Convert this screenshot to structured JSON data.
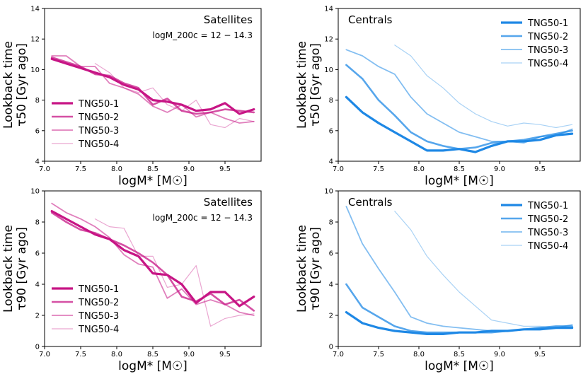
{
  "colors": {
    "satellites": "#c71585",
    "centrals": "#1e88e5"
  },
  "chart_data": [
    {
      "type": "line",
      "panel": "top-left",
      "title": "Satellites",
      "annotation": "logM_200c = 12 − 14.3",
      "xlabel": "logM* [M☉]",
      "ylabel_line1": "Lookback time",
      "ylabel_line2": "τ50 [Gyr ago]",
      "xlim": [
        7.0,
        10.0
      ],
      "ylim": [
        4,
        14
      ],
      "xticks": [
        "7.0",
        "7.5",
        "8.0",
        "8.5",
        "9.0",
        "9.5"
      ],
      "yticks": [
        "4",
        "6",
        "8",
        "10",
        "12",
        "14"
      ],
      "legend_position": "bottom-left",
      "series": [
        {
          "name": "TNG50-1",
          "x": [
            7.1,
            7.3,
            7.5,
            7.7,
            7.9,
            8.1,
            8.3,
            8.5,
            8.7,
            8.9,
            9.1,
            9.3,
            9.5,
            9.7,
            9.9
          ],
          "values": [
            10.7,
            10.4,
            10.1,
            9.8,
            9.5,
            9.0,
            8.7,
            8.0,
            7.9,
            7.7,
            7.3,
            7.4,
            7.8,
            7.1,
            7.4
          ]
        },
        {
          "name": "TNG50-2",
          "x": [
            7.1,
            7.3,
            7.5,
            7.7,
            7.9,
            8.1,
            8.3,
            8.5,
            8.7,
            8.9,
            9.1,
            9.3,
            9.5,
            9.7,
            9.9
          ],
          "values": [
            10.8,
            10.5,
            10.2,
            9.7,
            9.6,
            9.1,
            8.8,
            7.7,
            8.1,
            7.3,
            7.1,
            7.2,
            7.4,
            7.3,
            7.2
          ]
        },
        {
          "name": "TNG50-3",
          "x": [
            7.1,
            7.3,
            7.5,
            7.7,
            7.9,
            8.1,
            8.3,
            8.5,
            8.7,
            8.9,
            9.1,
            9.3,
            9.5,
            9.7,
            9.9
          ],
          "values": [
            10.9,
            10.9,
            10.2,
            10.2,
            9.1,
            8.8,
            8.4,
            7.6,
            7.2,
            7.7,
            6.9,
            7.2,
            6.8,
            6.5,
            6.6
          ]
        },
        {
          "name": "TNG50-4",
          "x": [
            7.7,
            7.9,
            8.1,
            8.3,
            8.5,
            8.7,
            8.9,
            9.1,
            9.3,
            9.5,
            9.7,
            9.9
          ],
          "values": [
            10.4,
            9.8,
            8.8,
            8.5,
            8.8,
            7.7,
            7.3,
            8.0,
            6.4,
            6.2,
            6.8,
            6.6
          ]
        }
      ]
    },
    {
      "type": "line",
      "panel": "top-right",
      "title": "Centrals",
      "xlabel": "logM* [M☉]",
      "ylabel_line1": "Lookback time",
      "ylabel_line2": "τ50 [Gyr ago]",
      "xlim": [
        7.0,
        10.0
      ],
      "ylim": [
        4,
        14
      ],
      "xticks": [
        "7.0",
        "7.5",
        "8.0",
        "8.5",
        "9.0",
        "9.5"
      ],
      "yticks": [
        "4",
        "6",
        "8",
        "10",
        "12",
        "14"
      ],
      "legend_position": "top-right",
      "series": [
        {
          "name": "TNG50-1",
          "x": [
            7.1,
            7.3,
            7.5,
            7.7,
            7.9,
            8.1,
            8.3,
            8.5,
            8.7,
            8.9,
            9.1,
            9.3,
            9.5,
            9.7,
            9.9
          ],
          "values": [
            8.2,
            7.2,
            6.5,
            5.9,
            5.3,
            4.7,
            4.7,
            4.8,
            4.6,
            5.0,
            5.3,
            5.3,
            5.4,
            5.7,
            5.8
          ]
        },
        {
          "name": "TNG50-2",
          "x": [
            7.1,
            7.3,
            7.5,
            7.7,
            7.9,
            8.1,
            8.3,
            8.5,
            8.7,
            8.9,
            9.1,
            9.3,
            9.5,
            9.7,
            9.9
          ],
          "values": [
            10.3,
            9.4,
            8.0,
            7.0,
            5.9,
            5.3,
            5.0,
            4.8,
            4.9,
            5.2,
            5.3,
            5.4,
            5.6,
            5.8,
            6.0
          ]
        },
        {
          "name": "TNG50-3",
          "x": [
            7.1,
            7.3,
            7.5,
            7.7,
            7.9,
            8.1,
            8.3,
            8.5,
            8.7,
            8.9,
            9.1,
            9.3,
            9.5,
            9.7,
            9.9
          ],
          "values": [
            11.3,
            10.9,
            10.2,
            9.7,
            8.2,
            7.1,
            6.5,
            5.9,
            5.6,
            5.3,
            5.3,
            5.2,
            5.6,
            5.7,
            6.1
          ]
        },
        {
          "name": "TNG50-4",
          "x": [
            7.7,
            7.9,
            8.1,
            8.3,
            8.5,
            8.7,
            8.9,
            9.1,
            9.3,
            9.5,
            9.7,
            9.9
          ],
          "values": [
            11.6,
            10.9,
            9.6,
            8.8,
            7.8,
            7.1,
            6.6,
            6.3,
            6.5,
            6.4,
            6.2,
            6.4
          ]
        }
      ]
    },
    {
      "type": "line",
      "panel": "bottom-left",
      "title": "Satellites",
      "annotation": "logM_200c = 12 − 14.3",
      "xlabel": "logM* [M☉]",
      "ylabel_line1": "Lookback time",
      "ylabel_line2": "τ90 [Gyr ago]",
      "xlim": [
        7.0,
        10.0
      ],
      "ylim": [
        0,
        10
      ],
      "xticks": [
        "7.0",
        "7.5",
        "8.0",
        "8.5",
        "9.0",
        "9.5"
      ],
      "yticks": [
        "0",
        "2",
        "4",
        "6",
        "8",
        "10"
      ],
      "legend_position": "bottom-left",
      "series": [
        {
          "name": "TNG50-1",
          "x": [
            7.1,
            7.3,
            7.5,
            7.7,
            7.9,
            8.1,
            8.3,
            8.5,
            8.7,
            8.9,
            9.1,
            9.3,
            9.5,
            9.7,
            9.9
          ],
          "values": [
            8.7,
            8.2,
            7.7,
            7.2,
            6.9,
            6.2,
            5.8,
            4.7,
            4.6,
            4.0,
            2.8,
            3.5,
            3.5,
            2.6,
            3.2
          ]
        },
        {
          "name": "TNG50-2",
          "x": [
            7.1,
            7.3,
            7.5,
            7.7,
            7.9,
            8.1,
            8.3,
            8.5,
            8.7,
            8.9,
            9.1,
            9.3,
            9.5,
            9.7,
            9.9
          ],
          "values": [
            8.6,
            8.0,
            7.5,
            7.3,
            6.9,
            6.5,
            6.0,
            5.4,
            4.6,
            3.2,
            2.9,
            3.4,
            2.7,
            3.0,
            2.3
          ]
        },
        {
          "name": "TNG50-3",
          "x": [
            7.1,
            7.3,
            7.5,
            7.7,
            7.9,
            8.1,
            8.3,
            8.5,
            8.7,
            8.9,
            9.1,
            9.3,
            9.5,
            9.7,
            9.9
          ],
          "values": [
            9.2,
            8.6,
            8.2,
            7.7,
            7.0,
            5.9,
            5.3,
            5.1,
            3.1,
            3.7,
            2.7,
            3.0,
            2.7,
            2.2,
            2.0
          ]
        },
        {
          "name": "TNG50-4",
          "x": [
            7.7,
            7.9,
            8.1,
            8.3,
            8.5,
            8.7,
            8.9,
            9.1,
            9.3,
            9.5,
            9.7,
            9.9
          ],
          "values": [
            8.2,
            7.7,
            7.6,
            5.8,
            5.8,
            3.8,
            4.0,
            5.2,
            1.3,
            1.8,
            2.0,
            2.1
          ]
        }
      ]
    },
    {
      "type": "line",
      "panel": "bottom-right",
      "title": "Centrals",
      "xlabel": "logM* [M☉]",
      "ylabel_line1": "Lookback time",
      "ylabel_line2": "τ90 [Gyr ago]",
      "xlim": [
        7.0,
        10.0
      ],
      "ylim": [
        0,
        10
      ],
      "xticks": [
        "7.0",
        "7.5",
        "8.0",
        "8.5",
        "9.0",
        "9.5"
      ],
      "yticks": [
        "0",
        "2",
        "4",
        "6",
        "8",
        "10"
      ],
      "legend_position": "top-right",
      "series": [
        {
          "name": "TNG50-1",
          "x": [
            7.1,
            7.3,
            7.5,
            7.7,
            7.9,
            8.1,
            8.3,
            8.5,
            8.7,
            8.9,
            9.1,
            9.3,
            9.5,
            9.7,
            9.9
          ],
          "values": [
            2.2,
            1.5,
            1.2,
            1.0,
            0.9,
            0.8,
            0.8,
            0.9,
            0.9,
            1.0,
            1.0,
            1.1,
            1.1,
            1.2,
            1.2
          ]
        },
        {
          "name": "TNG50-2",
          "x": [
            7.1,
            7.3,
            7.5,
            7.7,
            7.9,
            8.1,
            8.3,
            8.5,
            8.7,
            8.9,
            9.1,
            9.3,
            9.5,
            9.7,
            9.9
          ],
          "values": [
            4.0,
            2.5,
            1.9,
            1.3,
            1.0,
            0.9,
            0.9,
            0.9,
            0.9,
            0.9,
            1.0,
            1.1,
            1.2,
            1.3,
            1.3
          ]
        },
        {
          "name": "TNG50-3",
          "x": [
            7.1,
            7.3,
            7.5,
            7.7,
            7.9,
            8.1,
            8.3,
            8.5,
            8.7,
            8.9,
            9.1,
            9.3,
            9.5,
            9.7,
            9.9
          ],
          "values": [
            9.0,
            6.6,
            5.0,
            3.5,
            1.9,
            1.5,
            1.3,
            1.2,
            1.1,
            1.0,
            1.0,
            1.1,
            1.2,
            1.2,
            1.4
          ]
        },
        {
          "name": "TNG50-4",
          "x": [
            7.7,
            7.9,
            8.1,
            8.3,
            8.5,
            8.7,
            8.9,
            9.1,
            9.3,
            9.5,
            9.7,
            9.9
          ],
          "values": [
            8.7,
            7.5,
            5.8,
            4.6,
            3.5,
            2.6,
            1.7,
            1.5,
            1.3,
            1.3,
            1.2,
            1.2
          ]
        }
      ]
    }
  ]
}
